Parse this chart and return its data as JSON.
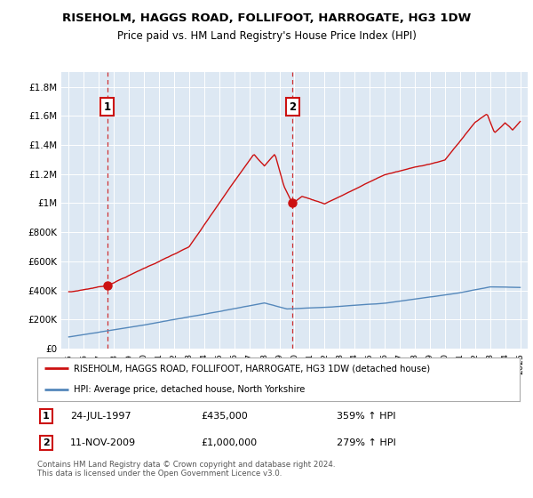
{
  "title": "RISEHOLM, HAGGS ROAD, FOLLIFOOT, HARROGATE, HG3 1DW",
  "subtitle": "Price paid vs. HM Land Registry's House Price Index (HPI)",
  "legend_line1": "RISEHOLM, HAGGS ROAD, FOLLIFOOT, HARROGATE, HG3 1DW (detached house)",
  "legend_line2": "HPI: Average price, detached house, North Yorkshire",
  "footnote": "Contains HM Land Registry data © Crown copyright and database right 2024.\nThis data is licensed under the Open Government Licence v3.0.",
  "sale1_date": "24-JUL-1997",
  "sale1_price": 435000,
  "sale1_price_str": "£435,000",
  "sale1_hpi": "359% ↑ HPI",
  "sale1_year": 1997.56,
  "sale2_date": "11-NOV-2009",
  "sale2_price": 1000000,
  "sale2_price_str": "£1,000,000",
  "sale2_hpi": "279% ↑ HPI",
  "sale2_year": 2009.87,
  "ylim_max": 1900000,
  "yticks": [
    0,
    200000,
    400000,
    600000,
    800000,
    1000000,
    1200000,
    1400000,
    1600000,
    1800000
  ],
  "ytick_labels": [
    "£0",
    "£200K",
    "£400K",
    "£600K",
    "£800K",
    "£1M",
    "£1.2M",
    "£1.4M",
    "£1.6M",
    "£1.8M"
  ],
  "bg_color": "#dde8f3",
  "red_color": "#cc1111",
  "blue_color": "#5588bb",
  "grid_color": "#ffffff",
  "xmin": 1994.5,
  "xmax": 2025.5,
  "title_fontsize": 10,
  "subtitle_fontsize": 9
}
